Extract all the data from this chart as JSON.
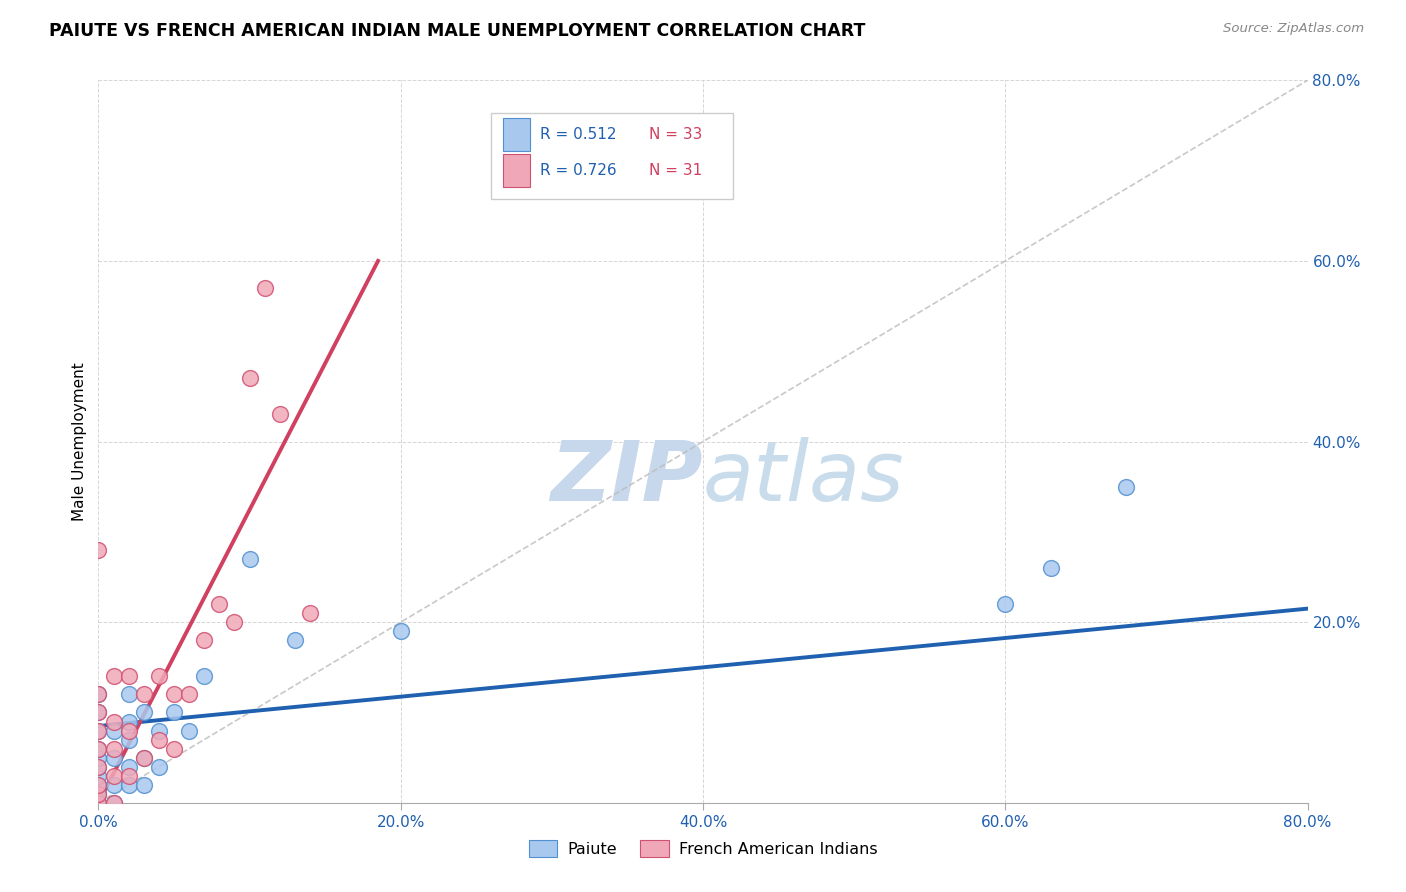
{
  "title": "PAIUTE VS FRENCH AMERICAN INDIAN MALE UNEMPLOYMENT CORRELATION CHART",
  "source_text": "Source: ZipAtlas.com",
  "ylabel": "Male Unemployment",
  "xlim": [
    0.0,
    0.8
  ],
  "ylim": [
    0.0,
    0.8
  ],
  "xticks": [
    0.0,
    0.2,
    0.4,
    0.6,
    0.8
  ],
  "yticks": [
    0.2,
    0.4,
    0.6,
    0.8
  ],
  "xticklabels": [
    "0.0%",
    "20.0%",
    "40.0%",
    "60.0%",
    "80.0%"
  ],
  "yticklabels": [
    "20.0%",
    "40.0%",
    "60.0%",
    "80.0%"
  ],
  "paiute_fill": "#A8C8EE",
  "paiute_edge": "#5090D0",
  "french_fill": "#F0A8B8",
  "french_edge": "#D05070",
  "paiute_line_color": "#2060B0",
  "french_line_color": "#D04060",
  "dash_color": "#BBBBBB",
  "watermark_color": "#C8DCF0",
  "watermark_color2": "#C8DCEC",
  "legend_r1_val": "0.512",
  "legend_n1_val": "33",
  "legend_r2_val": "0.726",
  "legend_n2_val": "31",
  "r_color": "#2060B0",
  "n_color": "#D04060",
  "paiute_x": [
    0.0,
    0.0,
    0.0,
    0.0,
    0.0,
    0.0,
    0.0,
    0.0,
    0.0,
    0.0,
    0.01,
    0.01,
    0.01,
    0.01,
    0.02,
    0.02,
    0.02,
    0.02,
    0.02,
    0.03,
    0.03,
    0.03,
    0.04,
    0.04,
    0.05,
    0.06,
    0.07,
    0.1,
    0.13,
    0.2,
    0.6,
    0.63,
    0.68
  ],
  "paiute_y": [
    0.0,
    0.01,
    0.02,
    0.03,
    0.04,
    0.05,
    0.06,
    0.08,
    0.1,
    0.12,
    0.0,
    0.02,
    0.05,
    0.08,
    0.02,
    0.04,
    0.07,
    0.09,
    0.12,
    0.02,
    0.05,
    0.1,
    0.04,
    0.08,
    0.1,
    0.08,
    0.14,
    0.27,
    0.18,
    0.19,
    0.22,
    0.26,
    0.35
  ],
  "french_x": [
    0.0,
    0.0,
    0.0,
    0.0,
    0.0,
    0.0,
    0.0,
    0.0,
    0.0,
    0.01,
    0.01,
    0.01,
    0.01,
    0.01,
    0.02,
    0.02,
    0.02,
    0.03,
    0.03,
    0.04,
    0.04,
    0.05,
    0.05,
    0.06,
    0.07,
    0.08,
    0.09,
    0.1,
    0.11,
    0.12,
    0.14
  ],
  "french_y": [
    0.0,
    0.01,
    0.02,
    0.04,
    0.06,
    0.08,
    0.1,
    0.12,
    0.28,
    0.0,
    0.03,
    0.06,
    0.09,
    0.14,
    0.03,
    0.08,
    0.14,
    0.05,
    0.12,
    0.07,
    0.14,
    0.06,
    0.12,
    0.12,
    0.18,
    0.22,
    0.2,
    0.47,
    0.57,
    0.43,
    0.21
  ],
  "paiute_line_x": [
    0.0,
    0.8
  ],
  "paiute_line_y": [
    0.085,
    0.215
  ],
  "french_line_x": [
    0.0,
    0.185
  ],
  "french_line_y": [
    0.0,
    0.6
  ],
  "dash_line_x": [
    0.0,
    0.8
  ],
  "dash_line_y": [
    0.0,
    0.8
  ]
}
